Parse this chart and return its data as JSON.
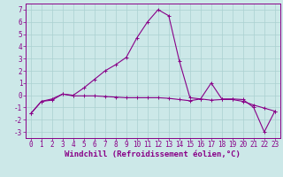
{
  "xlabel": "Windchill (Refroidissement éolien,°C)",
  "ylabel": "",
  "background_color": "#cce8e8",
  "grid_color": "#aad0d0",
  "line_color": "#880088",
  "x_values": [
    0,
    1,
    2,
    3,
    4,
    5,
    6,
    7,
    8,
    9,
    10,
    11,
    12,
    13,
    14,
    15,
    16,
    17,
    18,
    19,
    20,
    21,
    22,
    23
  ],
  "line1_y": [
    -1.5,
    -0.5,
    -0.4,
    0.1,
    -0.05,
    -0.05,
    -0.05,
    -0.1,
    -0.15,
    -0.2,
    -0.2,
    -0.2,
    -0.2,
    -0.25,
    -0.35,
    -0.45,
    -0.3,
    -0.4,
    -0.35,
    -0.35,
    -0.5,
    -0.8,
    -1.05,
    -1.3
  ],
  "line2_y": [
    -1.5,
    -0.5,
    -0.3,
    0.1,
    0.0,
    0.6,
    1.3,
    2.0,
    2.5,
    3.1,
    4.7,
    6.0,
    7.0,
    6.5,
    2.8,
    -0.2,
    -0.3,
    1.0,
    -0.3,
    -0.3,
    -0.35,
    -1.0,
    -3.0,
    -1.3
  ],
  "ylim": [
    -3.5,
    7.5
  ],
  "xlim": [
    -0.5,
    23.5
  ],
  "yticks": [
    -3,
    -2,
    -1,
    0,
    1,
    2,
    3,
    4,
    5,
    6,
    7
  ],
  "xticks": [
    0,
    1,
    2,
    3,
    4,
    5,
    6,
    7,
    8,
    9,
    10,
    11,
    12,
    13,
    14,
    15,
    16,
    17,
    18,
    19,
    20,
    21,
    22,
    23
  ],
  "xlabel_fontsize": 6.5,
  "tick_fontsize": 5.5,
  "line_width": 0.8,
  "marker": "+",
  "markersize": 2.5
}
